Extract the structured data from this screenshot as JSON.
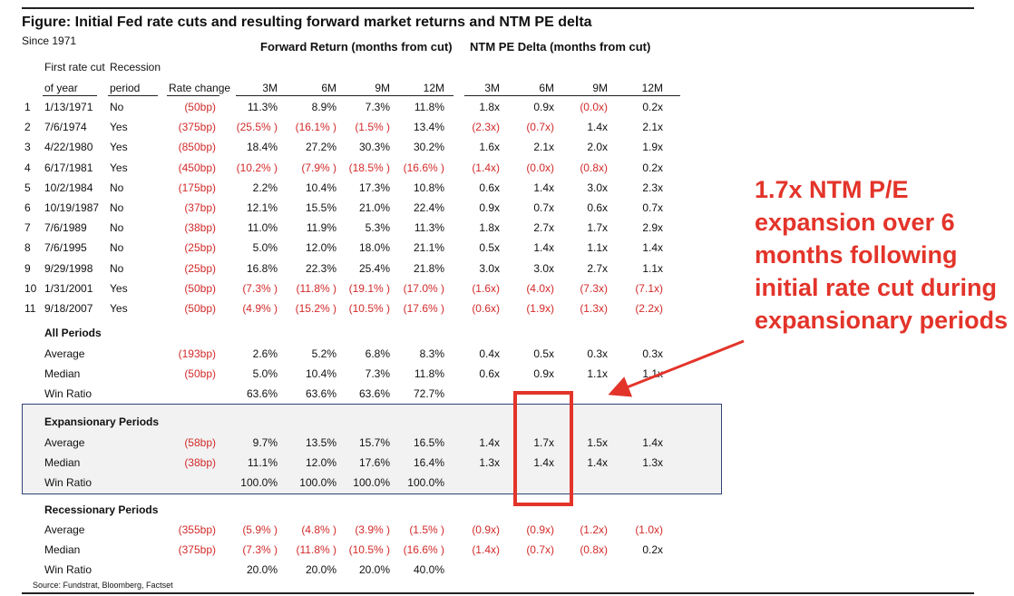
{
  "title": "Figure: Initial Fed rate cuts and resulting forward market returns and NTM PE delta",
  "subtitle": "Since 1971",
  "group_headers": {
    "forward_return": "Forward Return (months from cut)",
    "pe_delta": "NTM PE Delta (months from cut)"
  },
  "col_headers": {
    "first_cut_l1": "First rate cut",
    "first_cut_l2": "of year",
    "recession_l1": "Recession",
    "recession_l2": "period",
    "rate_change": "Rate change",
    "fr": [
      "3M",
      "6M",
      "9M",
      "12M"
    ],
    "pe": [
      "3M",
      "6M",
      "9M",
      "12M"
    ]
  },
  "rows": [
    {
      "num": "1",
      "date": "1/13/1971",
      "rec": "No",
      "rate": "(50bp)",
      "fr": [
        "11.3%",
        "8.9%",
        "7.3%",
        "11.8%"
      ],
      "pe": [
        "1.8x",
        "0.9x",
        "(0.0x)",
        "0.2x"
      ]
    },
    {
      "num": "2",
      "date": "7/6/1974",
      "rec": "Yes",
      "rate": "(375bp)",
      "fr": [
        "(25.5% )",
        "(16.1% )",
        "(1.5% )",
        "13.4%"
      ],
      "pe": [
        "(2.3x)",
        "(0.7x)",
        "1.4x",
        "2.1x"
      ]
    },
    {
      "num": "3",
      "date": "4/22/1980",
      "rec": "Yes",
      "rate": "(850bp)",
      "fr": [
        "18.4%",
        "27.2%",
        "30.3%",
        "30.2%"
      ],
      "pe": [
        "1.6x",
        "2.1x",
        "2.0x",
        "1.9x"
      ]
    },
    {
      "num": "4",
      "date": "6/17/1981",
      "rec": "Yes",
      "rate": "(450bp)",
      "fr": [
        "(10.2% )",
        "(7.9% )",
        "(18.5% )",
        "(16.6% )"
      ],
      "pe": [
        "(1.4x)",
        "(0.0x)",
        "(0.8x)",
        "0.2x"
      ]
    },
    {
      "num": "5",
      "date": "10/2/1984",
      "rec": "No",
      "rate": "(175bp)",
      "fr": [
        "2.2%",
        "10.4%",
        "17.3%",
        "10.8%"
      ],
      "pe": [
        "0.6x",
        "1.4x",
        "3.0x",
        "2.3x"
      ]
    },
    {
      "num": "6",
      "date": "10/19/1987",
      "rec": "No",
      "rate": "(37bp)",
      "fr": [
        "12.1%",
        "15.5%",
        "21.0%",
        "22.4%"
      ],
      "pe": [
        "0.9x",
        "0.7x",
        "0.6x",
        "0.7x"
      ]
    },
    {
      "num": "7",
      "date": "7/6/1989",
      "rec": "No",
      "rate": "(38bp)",
      "fr": [
        "11.0%",
        "11.9%",
        "5.3%",
        "11.3%"
      ],
      "pe": [
        "1.8x",
        "2.7x",
        "1.7x",
        "2.9x"
      ]
    },
    {
      "num": "8",
      "date": "7/6/1995",
      "rec": "No",
      "rate": "(25bp)",
      "fr": [
        "5.0%",
        "12.0%",
        "18.0%",
        "21.1%"
      ],
      "pe": [
        "0.5x",
        "1.4x",
        "1.1x",
        "1.4x"
      ]
    },
    {
      "num": "9",
      "date": "9/29/1998",
      "rec": "No",
      "rate": "(25bp)",
      "fr": [
        "16.8%",
        "22.3%",
        "25.4%",
        "21.8%"
      ],
      "pe": [
        "3.0x",
        "3.0x",
        "2.7x",
        "1.1x"
      ]
    },
    {
      "num": "10",
      "date": "1/31/2001",
      "rec": "Yes",
      "rate": "(50bp)",
      "fr": [
        "(7.3% )",
        "(11.8% )",
        "(19.1% )",
        "(17.0% )"
      ],
      "pe": [
        "(1.6x)",
        "(4.0x)",
        "(7.3x)",
        "(7.1x)"
      ]
    },
    {
      "num": "11",
      "date": "9/18/2007",
      "rec": "Yes",
      "rate": "(50bp)",
      "fr": [
        "(4.9% )",
        "(15.2% )",
        "(10.5% )",
        "(17.6% )"
      ],
      "pe": [
        "(0.6x)",
        "(1.9x)",
        "(1.3x)",
        "(2.2x)"
      ]
    }
  ],
  "sections": [
    {
      "label": "All Periods",
      "rows": [
        {
          "label": "Average",
          "rate": "(193bp)",
          "fr": [
            "2.6%",
            "5.2%",
            "6.8%",
            "8.3%"
          ],
          "pe": [
            "0.4x",
            "0.5x",
            "0.3x",
            "0.3x"
          ]
        },
        {
          "label": "Median",
          "rate": "(50bp)",
          "fr": [
            "5.0%",
            "10.4%",
            "7.3%",
            "11.8%"
          ],
          "pe": [
            "0.6x",
            "0.9x",
            "1.1x",
            "1.1x"
          ]
        },
        {
          "label": "Win Ratio",
          "rate": "",
          "fr": [
            "63.6%",
            "63.6%",
            "63.6%",
            "72.7%"
          ],
          "pe": [
            "",
            "",
            "",
            ""
          ]
        }
      ]
    },
    {
      "label": "Expansionary Periods",
      "rows": [
        {
          "label": "Average",
          "rate": "(58bp)",
          "fr": [
            "9.7%",
            "13.5%",
            "15.7%",
            "16.5%"
          ],
          "pe": [
            "1.4x",
            "1.7x",
            "1.5x",
            "1.4x"
          ]
        },
        {
          "label": "Median",
          "rate": "(38bp)",
          "fr": [
            "11.1%",
            "12.0%",
            "17.6%",
            "16.4%"
          ],
          "pe": [
            "1.3x",
            "1.4x",
            "1.4x",
            "1.3x"
          ]
        },
        {
          "label": "Win Ratio",
          "rate": "",
          "fr": [
            "100.0%",
            "100.0%",
            "100.0%",
            "100.0%"
          ],
          "pe": [
            "",
            "",
            "",
            ""
          ]
        }
      ]
    },
    {
      "label": "Recessionary Periods",
      "rows": [
        {
          "label": "Average",
          "rate": "(355bp)",
          "fr": [
            "(5.9% )",
            "(4.8% )",
            "(3.9% )",
            "(1.5% )"
          ],
          "pe": [
            "(0.9x)",
            "(0.9x)",
            "(1.2x)",
            "(1.0x)"
          ]
        },
        {
          "label": "Median",
          "rate": "(375bp)",
          "fr": [
            "(7.3% )",
            "(11.8% )",
            "(10.5% )",
            "(16.6% )"
          ],
          "pe": [
            "(1.4x)",
            "(0.7x)",
            "(0.8x)",
            "0.2x"
          ]
        },
        {
          "label": "Win Ratio",
          "rate": "",
          "fr": [
            "20.0%",
            "20.0%",
            "20.0%",
            "40.0%"
          ],
          "pe": [
            "",
            "",
            "",
            ""
          ]
        }
      ]
    }
  ],
  "callout": "1.7x NTM P/E expansion over 6 months following initial rate cut during expansionary periods",
  "source": "Source: Fundstrat, Bloomberg, Factset",
  "colors": {
    "negative": "#d32a2a",
    "callout": "#e3342a",
    "box_border": "#2e4374",
    "box_fill": "#f2f2f2"
  }
}
